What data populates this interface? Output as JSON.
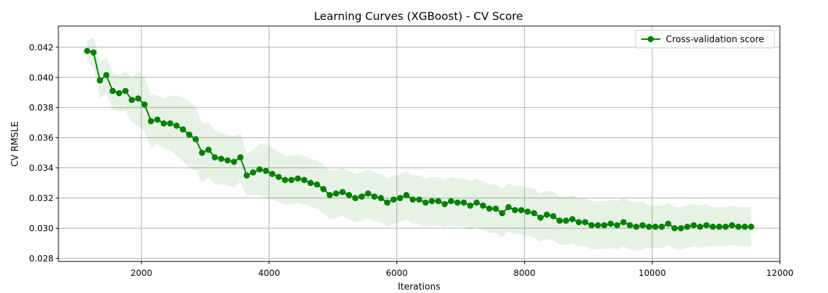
{
  "chart_data": {
    "type": "line",
    "title": "Learning Curves (XGBoost) - CV Score",
    "xlabel": "Iterations",
    "ylabel": "CV RMSLE",
    "xlim": [
      700,
      12000
    ],
    "ylim": [
      0.0278,
      0.0434
    ],
    "xticks": [
      2000,
      4000,
      6000,
      8000,
      10000,
      12000
    ],
    "xtick_labels": [
      "2000",
      "4000",
      "6000",
      "8000",
      "10000",
      "12000"
    ],
    "yticks": [
      0.028,
      0.03,
      0.032,
      0.034,
      0.036,
      0.038,
      0.04,
      0.042
    ],
    "ytick_labels": [
      "0.028",
      "0.030",
      "0.032",
      "0.034",
      "0.036",
      "0.038",
      "0.040",
      "0.042"
    ],
    "grid": true,
    "legend_position": "top-right",
    "colors": {
      "line": "#008000",
      "band": "#008000"
    },
    "series": [
      {
        "name": "Cross-validation score",
        "x": [
          1150,
          1250,
          1350,
          1450,
          1550,
          1650,
          1750,
          1850,
          1950,
          2050,
          2150,
          2250,
          2350,
          2450,
          2550,
          2650,
          2750,
          2850,
          2950,
          3050,
          3150,
          3250,
          3350,
          3450,
          3550,
          3650,
          3750,
          3850,
          3950,
          4050,
          4150,
          4250,
          4350,
          4450,
          4550,
          4650,
          4750,
          4850,
          4950,
          5050,
          5150,
          5250,
          5350,
          5450,
          5550,
          5650,
          5750,
          5850,
          5950,
          6050,
          6150,
          6250,
          6350,
          6450,
          6550,
          6650,
          6750,
          6850,
          6950,
          7050,
          7150,
          7250,
          7350,
          7450,
          7550,
          7650,
          7750,
          7850,
          7950,
          8050,
          8150,
          8250,
          8350,
          8450,
          8550,
          8650,
          8750,
          8850,
          8950,
          9050,
          9150,
          9250,
          9350,
          9450,
          9550,
          9650,
          9750,
          9850,
          9950,
          10050,
          10150,
          10250,
          10350,
          10450,
          10550,
          10650,
          10750,
          10850,
          10950,
          11050,
          11150,
          11250,
          11350,
          11450,
          11550
        ],
        "y": [
          0.04175,
          0.04165,
          0.0398,
          0.04015,
          0.0391,
          0.03895,
          0.0391,
          0.0385,
          0.0386,
          0.0382,
          0.0371,
          0.0372,
          0.03695,
          0.03695,
          0.0368,
          0.03655,
          0.0362,
          0.0359,
          0.035,
          0.0352,
          0.0347,
          0.0346,
          0.0345,
          0.0344,
          0.0347,
          0.0335,
          0.0337,
          0.0339,
          0.0338,
          0.0336,
          0.0334,
          0.0332,
          0.0332,
          0.0333,
          0.0332,
          0.033,
          0.0329,
          0.0326,
          0.0322,
          0.0323,
          0.0324,
          0.0322,
          0.032,
          0.0321,
          0.0323,
          0.0321,
          0.032,
          0.0317,
          0.0319,
          0.032,
          0.0322,
          0.0319,
          0.0319,
          0.0317,
          0.0318,
          0.0318,
          0.0316,
          0.0318,
          0.0317,
          0.0317,
          0.0315,
          0.0317,
          0.0315,
          0.0313,
          0.0313,
          0.031,
          0.0314,
          0.0312,
          0.0312,
          0.0311,
          0.031,
          0.0307,
          0.0309,
          0.0308,
          0.0305,
          0.0305,
          0.0306,
          0.0304,
          0.0304,
          0.0302,
          0.0302,
          0.0302,
          0.0303,
          0.0302,
          0.0304,
          0.0302,
          0.0301,
          0.0302,
          0.0301,
          0.0301,
          0.0301,
          0.0303,
          0.03,
          0.03,
          0.0301,
          0.0302,
          0.0301,
          0.0302,
          0.0301,
          0.0301,
          0.0301,
          0.0302,
          0.0301,
          0.0301,
          0.0301
        ],
        "std": [
          0.0007,
          0.001,
          0.0012,
          0.0012,
          0.0012,
          0.0012,
          0.0013,
          0.0015,
          0.0018,
          0.0018,
          0.0018,
          0.0016,
          0.0016,
          0.0018,
          0.002,
          0.0021,
          0.0022,
          0.0021,
          0.002,
          0.0018,
          0.0018,
          0.0017,
          0.0017,
          0.0017,
          0.0016,
          0.0014,
          0.0015,
          0.0017,
          0.0018,
          0.0017,
          0.0017,
          0.0016,
          0.0016,
          0.0016,
          0.0016,
          0.0016,
          0.0016,
          0.0016,
          0.0016,
          0.0016,
          0.0016,
          0.0016,
          0.0016,
          0.0016,
          0.0016,
          0.0016,
          0.0016,
          0.0016,
          0.0016,
          0.0016,
          0.0016,
          0.0016,
          0.0016,
          0.0016,
          0.0016,
          0.0016,
          0.0016,
          0.0016,
          0.0016,
          0.0016,
          0.0016,
          0.0016,
          0.0016,
          0.0016,
          0.0016,
          0.0016,
          0.0016,
          0.0016,
          0.0016,
          0.0016,
          0.0016,
          0.0016,
          0.0016,
          0.0016,
          0.0016,
          0.0016,
          0.0016,
          0.0016,
          0.0016,
          0.0016,
          0.0016,
          0.0016,
          0.0016,
          0.0016,
          0.0016,
          0.0016,
          0.0016,
          0.0016,
          0.0014,
          0.0014,
          0.0014,
          0.0014,
          0.0014,
          0.0014,
          0.0014,
          0.0014,
          0.0014,
          0.0014,
          0.0013,
          0.0013,
          0.0013,
          0.0013,
          0.0013,
          0.0013,
          0.0013
        ]
      }
    ]
  }
}
